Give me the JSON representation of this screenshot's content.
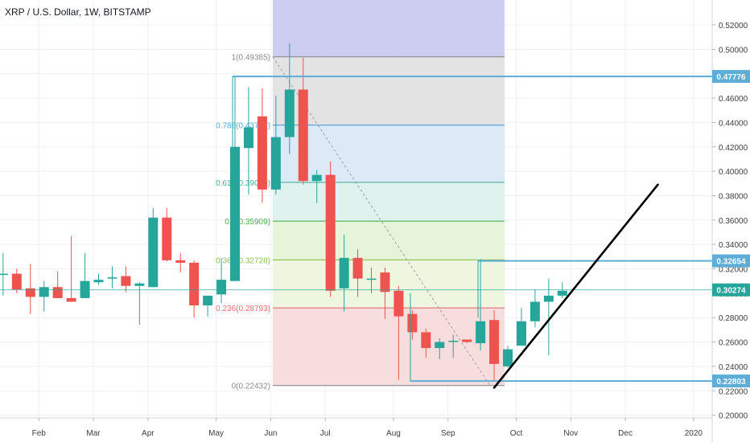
{
  "header": {
    "title": "XRP / U.S. Dollar, 1W, BITSTAMP"
  },
  "chart_data": {
    "type": "candlestick",
    "title": "XRP / U.S. Dollar, 1W, BITSTAMP",
    "ylim": [
      0.19,
      0.53
    ],
    "y_ticks": [
      "0.52000",
      "0.50000",
      "0.48000",
      "0.46000",
      "0.44000",
      "0.42000",
      "0.40000",
      "0.38000",
      "0.36000",
      "0.34000",
      "0.32000",
      "0.30000",
      "0.28000",
      "0.26000",
      "0.24000",
      "0.22000",
      "0.20000"
    ],
    "x_ticks": [
      {
        "label": "Feb",
        "week": 3
      },
      {
        "label": "Mar",
        "week": 7
      },
      {
        "label": "Apr",
        "week": 11
      },
      {
        "label": "May",
        "week": 16
      },
      {
        "label": "Jun",
        "week": 20
      },
      {
        "label": "Jul",
        "week": 24
      },
      {
        "label": "Aug",
        "week": 29
      },
      {
        "label": "Sep",
        "week": 33
      },
      {
        "label": "Oct",
        "week": 38
      },
      {
        "label": "Nov",
        "week": 42
      },
      {
        "label": "Dec",
        "week": 46
      },
      {
        "label": "2020",
        "week": 51
      }
    ],
    "candles": [
      {
        "o": 0.315,
        "h": 0.333,
        "l": 0.298,
        "c": 0.316
      },
      {
        "o": 0.316,
        "h": 0.32,
        "l": 0.3,
        "c": 0.303
      },
      {
        "o": 0.304,
        "h": 0.324,
        "l": 0.283,
        "c": 0.297
      },
      {
        "o": 0.297,
        "h": 0.31,
        "l": 0.285,
        "c": 0.305
      },
      {
        "o": 0.305,
        "h": 0.318,
        "l": 0.296,
        "c": 0.296
      },
      {
        "o": 0.296,
        "h": 0.347,
        "l": 0.293,
        "c": 0.293
      },
      {
        "o": 0.296,
        "h": 0.333,
        "l": 0.296,
        "c": 0.31
      },
      {
        "o": 0.309,
        "h": 0.316,
        "l": 0.307,
        "c": 0.311
      },
      {
        "o": 0.312,
        "h": 0.322,
        "l": 0.304,
        "c": 0.313
      },
      {
        "o": 0.314,
        "h": 0.322,
        "l": 0.301,
        "c": 0.306
      },
      {
        "o": 0.306,
        "h": 0.309,
        "l": 0.274,
        "c": 0.308
      },
      {
        "o": 0.305,
        "h": 0.37,
        "l": 0.305,
        "c": 0.362
      },
      {
        "o": 0.362,
        "h": 0.37,
        "l": 0.326,
        "c": 0.327
      },
      {
        "o": 0.327,
        "h": 0.333,
        "l": 0.317,
        "c": 0.325
      },
      {
        "o": 0.325,
        "h": 0.327,
        "l": 0.28,
        "c": 0.29
      },
      {
        "o": 0.29,
        "h": 0.297,
        "l": 0.281,
        "c": 0.298
      },
      {
        "o": 0.299,
        "h": 0.329,
        "l": 0.292,
        "c": 0.311
      },
      {
        "o": 0.31,
        "h": 0.478,
        "l": 0.31,
        "c": 0.42
      },
      {
        "o": 0.419,
        "h": 0.469,
        "l": 0.381,
        "c": 0.436
      },
      {
        "o": 0.445,
        "h": 0.468,
        "l": 0.374,
        "c": 0.385
      },
      {
        "o": 0.385,
        "h": 0.462,
        "l": 0.381,
        "c": 0.428
      },
      {
        "o": 0.428,
        "h": 0.505,
        "l": 0.414,
        "c": 0.467
      },
      {
        "o": 0.467,
        "h": 0.493,
        "l": 0.389,
        "c": 0.392
      },
      {
        "o": 0.392,
        "h": 0.401,
        "l": 0.374,
        "c": 0.397
      },
      {
        "o": 0.397,
        "h": 0.408,
        "l": 0.297,
        "c": 0.302
      },
      {
        "o": 0.304,
        "h": 0.348,
        "l": 0.285,
        "c": 0.329
      },
      {
        "o": 0.329,
        "h": 0.336,
        "l": 0.297,
        "c": 0.312
      },
      {
        "o": 0.312,
        "h": 0.321,
        "l": 0.3,
        "c": 0.312
      },
      {
        "o": 0.317,
        "h": 0.321,
        "l": 0.279,
        "c": 0.301
      },
      {
        "o": 0.302,
        "h": 0.306,
        "l": 0.229,
        "c": 0.281
      },
      {
        "o": 0.283,
        "h": 0.286,
        "l": 0.262,
        "c": 0.268
      },
      {
        "o": 0.268,
        "h": 0.271,
        "l": 0.247,
        "c": 0.255
      },
      {
        "o": 0.255,
        "h": 0.263,
        "l": 0.246,
        "c": 0.26
      },
      {
        "o": 0.26,
        "h": 0.266,
        "l": 0.247,
        "c": 0.261
      },
      {
        "o": 0.262,
        "h": 0.262,
        "l": 0.259,
        "c": 0.26
      },
      {
        "o": 0.259,
        "h": 0.328,
        "l": 0.253,
        "c": 0.277
      },
      {
        "o": 0.278,
        "h": 0.286,
        "l": 0.228,
        "c": 0.242
      },
      {
        "o": 0.24,
        "h": 0.257,
        "l": 0.239,
        "c": 0.254
      },
      {
        "o": 0.257,
        "h": 0.288,
        "l": 0.257,
        "c": 0.277
      },
      {
        "o": 0.277,
        "h": 0.303,
        "l": 0.272,
        "c": 0.293
      },
      {
        "o": 0.293,
        "h": 0.312,
        "l": 0.249,
        "c": 0.298
      },
      {
        "o": 0.298,
        "h": 0.309,
        "l": 0.296,
        "c": 0.302
      }
    ],
    "fibonacci": {
      "levels": [
        {
          "label": "1(0.49385)",
          "value": 0.49385,
          "fill": "#e3e3e3"
        },
        {
          "label": "0.786(0.43787)",
          "value": 0.43787,
          "fill": "#dce9f7"
        },
        {
          "label": "0.618(0.39089)",
          "value": 0.39089,
          "fill": "#dff2ee"
        },
        {
          "label": "0.5(0.35909)",
          "value": 0.35909,
          "fill": "#e6f5da"
        },
        {
          "label": "0.382(0.32728)",
          "value": 0.32728,
          "fill": "#eef6e0"
        },
        {
          "label": "0.236(0.28793)",
          "value": 0.28793,
          "fill": "#f7dddd"
        },
        {
          "label": "0(0.22432)",
          "value": 0.22432,
          "fill": "#f7dddd"
        }
      ],
      "level_colors": [
        "#8c8c8c",
        "#58a6dd",
        "#4caf9c",
        "#4caf50",
        "#8bc34a",
        "#e57373",
        "#8c8c8c"
      ],
      "extension_top_fill": "#c8c6f0"
    },
    "price_lines": [
      {
        "value": 0.47776,
        "label": "0.47776",
        "color": "#5dadd6"
      },
      {
        "value": 0.32654,
        "label": "0.32654",
        "color": "#5dadd6"
      },
      {
        "value": 0.22803,
        "label": "0.22803",
        "color": "#5dadd6"
      }
    ],
    "last_price": {
      "value": 0.30274,
      "label": "0.30274",
      "color": "#26a69a"
    },
    "trend_line": {
      "from": {
        "week": 36,
        "value": 0.2225
      },
      "to": {
        "week": 48,
        "value": 0.389
      },
      "color": "#000000"
    },
    "colors": {
      "up": "#26a69a",
      "down": "#ef5350",
      "grid": "#eef0f3",
      "axis_text": "#3d3d3d"
    }
  }
}
